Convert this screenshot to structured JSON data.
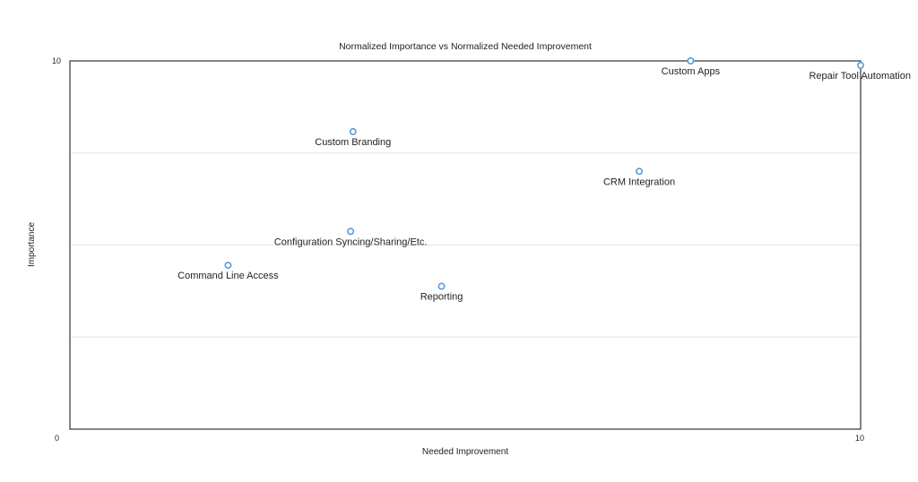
{
  "chart_data": {
    "type": "scatter",
    "title": "Normalized Importance vs Normalized Needed Improvement",
    "xlabel": "Needed Improvement",
    "ylabel": "Importance",
    "xlim": [
      0,
      10
    ],
    "ylim": [
      0,
      10
    ],
    "x_ticks": [
      "0",
      "10"
    ],
    "y_ticks": [
      "0",
      "10"
    ],
    "grid": true,
    "legend": "none",
    "point_color": "#5b9bd5",
    "points": [
      {
        "label": "Custom Apps",
        "x": 7.85,
        "y": 10.0
      },
      {
        "label": "Repair Tool Automation",
        "x": 10.0,
        "y": 9.88
      },
      {
        "label": "Custom Branding",
        "x": 3.58,
        "y": 8.08
      },
      {
        "label": "CRM Integration",
        "x": 7.2,
        "y": 7.0
      },
      {
        "label": "Configuration Syncing/Sharing/Etc.",
        "x": 3.55,
        "y": 5.37
      },
      {
        "label": "Command Line Access",
        "x": 2.0,
        "y": 4.45
      },
      {
        "label": "Reporting",
        "x": 4.7,
        "y": 3.88
      }
    ]
  }
}
